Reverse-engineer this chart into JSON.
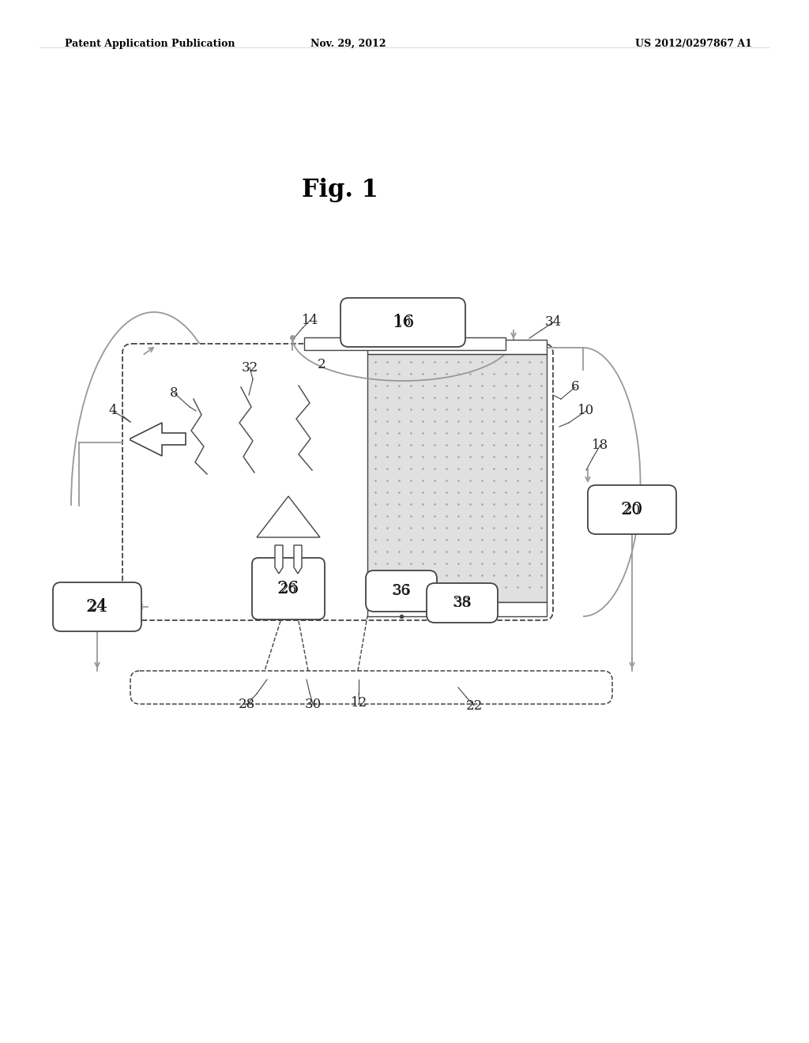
{
  "bg_color": "#ffffff",
  "title_text": "Fig. 1",
  "header_left": "Patent Application Publication",
  "header_center": "Nov. 29, 2012",
  "header_right": "US 2012/0297867 A1",
  "gray": "#999999",
  "dark": "#444444",
  "lc": "#666666"
}
